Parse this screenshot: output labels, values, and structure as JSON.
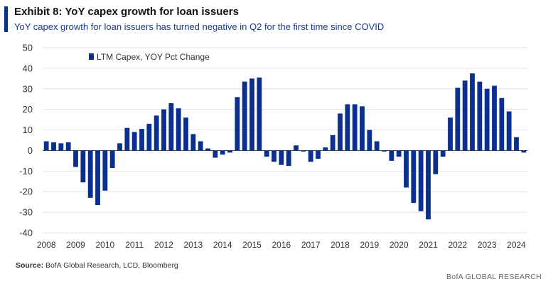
{
  "header": {
    "title": "Exhibit 8: YoY capex growth for loan issuers",
    "subtitle": "YoY capex growth for loan issuers has turned negative in Q2 for the first time since COVID"
  },
  "footer": {
    "source_label": "Source:",
    "source_text": "BofA Global Research, LCD, Bloomberg",
    "brand": "BofA GLOBAL RESEARCH"
  },
  "colors": {
    "accent": "#0a2f8f",
    "bar": "#0a2f8f",
    "grid": "#e2e2e2",
    "subtitle": "#1a3b8c"
  },
  "chart_data": {
    "type": "bar",
    "title": "",
    "xlabel": "",
    "ylabel": "",
    "ylim": [
      -40,
      50
    ],
    "yticks": [
      50,
      40,
      30,
      20,
      10,
      0,
      -10,
      -20,
      -30,
      -40
    ],
    "xticks": [
      "2008",
      "2009",
      "2010",
      "2011",
      "2012",
      "2013",
      "2014",
      "2015",
      "2016",
      "2017",
      "2018",
      "2019",
      "2020",
      "2021",
      "2022",
      "2023",
      "2024"
    ],
    "grid": true,
    "legend_position": "top-left",
    "series": [
      {
        "name": "LTM Capex, YOY Pct Change",
        "color": "#0a2f8f",
        "values": [
          4.5,
          4,
          3.5,
          4,
          -8,
          -15.5,
          -23,
          -26.5,
          -19.5,
          -8.5,
          3.5,
          11,
          9,
          10.5,
          13,
          17,
          20,
          23,
          20.5,
          16,
          8,
          4.5,
          1,
          -3.5,
          -2,
          -1,
          26,
          33.5,
          35,
          35.5,
          -3,
          -5.5,
          -7,
          -7.5,
          2.5,
          -0.5,
          -5.5,
          -4,
          1.5,
          7.5,
          18,
          22.5,
          22.5,
          21.5,
          10,
          4.5,
          -0.5,
          -5,
          -3,
          -18,
          -25.5,
          -29.5,
          -33.5,
          -11.5,
          -3,
          16,
          30.5,
          34,
          37.5,
          33.5,
          30,
          31.5,
          25.5,
          19,
          6.5,
          -1
        ]
      }
    ]
  }
}
